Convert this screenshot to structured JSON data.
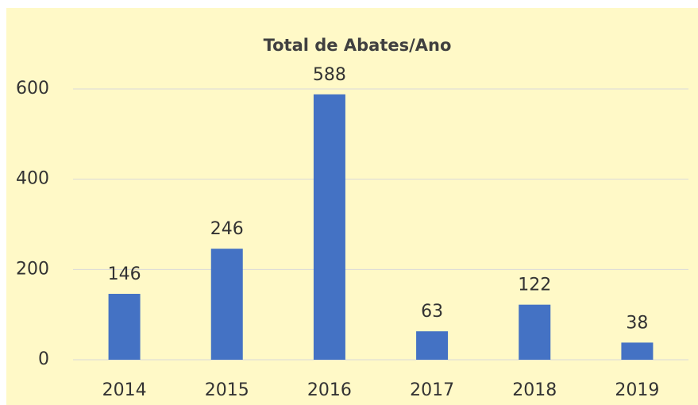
{
  "chart_data": {
    "type": "bar",
    "title": "Total de Abates/Ano",
    "categories": [
      "2014",
      "2015",
      "2016",
      "2017",
      "2018",
      "2019"
    ],
    "values": [
      146,
      246,
      588,
      63,
      122,
      38
    ],
    "color": "#4472c4",
    "ylim": [
      0,
      600
    ],
    "yticks": [
      0,
      200,
      400,
      600
    ],
    "grid": true
  }
}
